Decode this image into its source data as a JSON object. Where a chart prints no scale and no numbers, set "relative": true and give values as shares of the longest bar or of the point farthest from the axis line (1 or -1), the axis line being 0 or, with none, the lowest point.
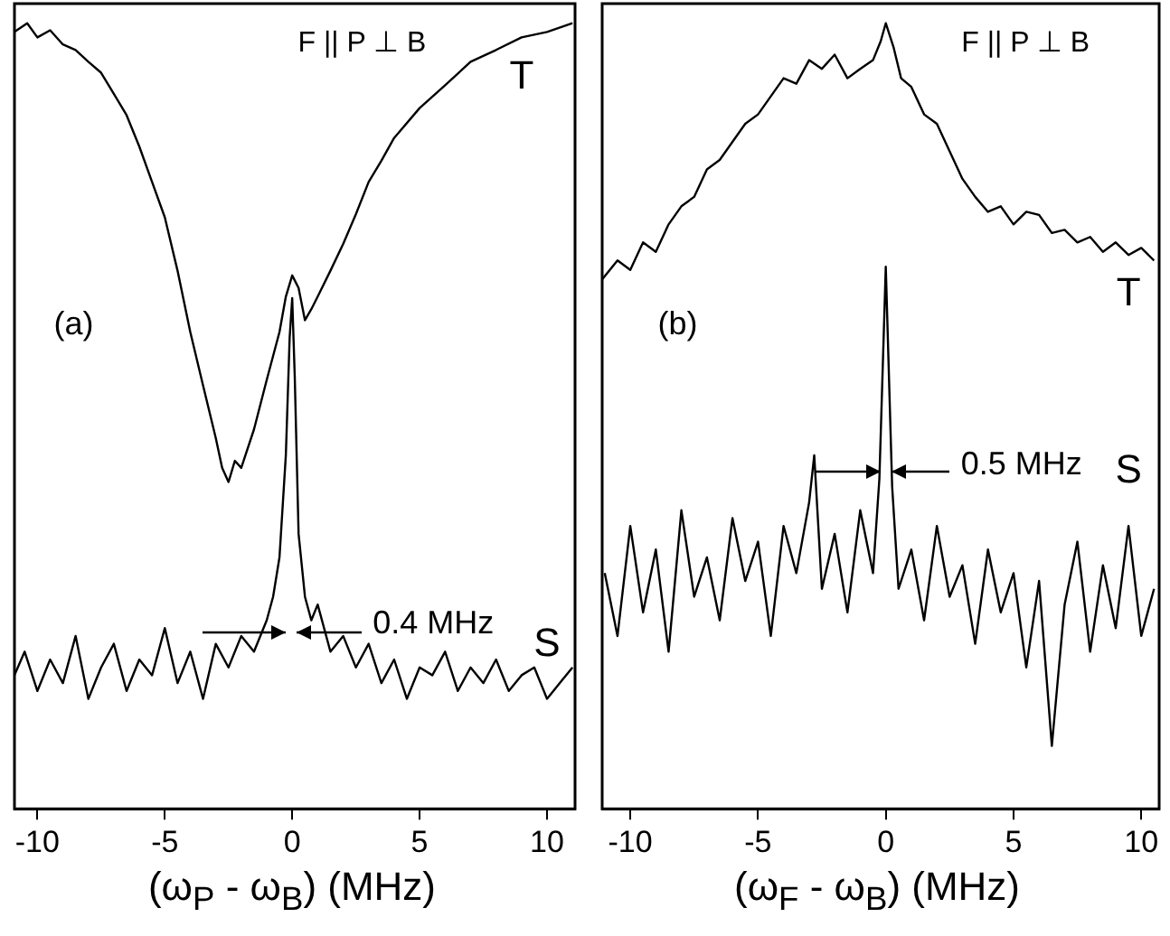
{
  "chart_data": [
    {
      "type": "line",
      "relative": true,
      "title": "F || P ⊥ B",
      "xlabel": "(ω$_{P}$ - ω$_{B}$) (MHz)",
      "xlim": [
        -10.9,
        11.1
      ],
      "xticks": [
        -10,
        -5,
        0,
        5,
        10
      ],
      "grid": false,
      "legend": false,
      "annotations": [
        "(a)",
        "0.4 MHz"
      ],
      "series": [
        {
          "name": "T",
          "color": "#000000",
          "x": [
            -10.9,
            -10.4,
            -10,
            -9.5,
            -9,
            -8.5,
            -8,
            -7.5,
            -7,
            -6.5,
            -6,
            -5.5,
            -5,
            -4.5,
            -4,
            -3.5,
            -3,
            -2.75,
            -2.5,
            -2.25,
            -2,
            -1.5,
            -1,
            -0.5,
            -0.25,
            0,
            0.25,
            0.5,
            0.75,
            1,
            1.5,
            2,
            2.5,
            3,
            3.5,
            4,
            5,
            6,
            7,
            8,
            9,
            10,
            11
          ],
          "values": [
            0.989,
            1.0,
            0.982,
            0.991,
            0.973,
            0.966,
            0.951,
            0.937,
            0.91,
            0.883,
            0.843,
            0.798,
            0.753,
            0.685,
            0.607,
            0.539,
            0.472,
            0.434,
            0.416,
            0.443,
            0.434,
            0.483,
            0.546,
            0.607,
            0.652,
            0.679,
            0.663,
            0.622,
            0.636,
            0.652,
            0.685,
            0.719,
            0.757,
            0.798,
            0.825,
            0.854,
            0.892,
            0.921,
            0.951,
            0.966,
            0.982,
            0.989,
            1.0
          ]
        },
        {
          "name": "S",
          "color": "#000000",
          "x": [
            -10.9,
            -10.5,
            -10,
            -9.5,
            -9,
            -8.5,
            -8,
            -7.5,
            -7,
            -6.5,
            -6,
            -5.5,
            -5,
            -4.5,
            -4,
            -3.5,
            -3,
            -2.5,
            -2,
            -1.5,
            -1,
            -0.75,
            -0.5,
            -0.25,
            -0.1,
            0,
            0.1,
            0.25,
            0.5,
            0.75,
            1,
            1.5,
            2,
            2.5,
            3,
            3.5,
            4,
            4.5,
            5,
            5.5,
            6,
            6.5,
            7,
            7.5,
            8,
            8.5,
            9,
            9.5,
            10,
            10.5,
            11
          ],
          "values": [
            0.17,
            0.2,
            0.15,
            0.19,
            0.16,
            0.22,
            0.14,
            0.18,
            0.21,
            0.15,
            0.19,
            0.17,
            0.23,
            0.16,
            0.2,
            0.14,
            0.21,
            0.18,
            0.22,
            0.2,
            0.24,
            0.27,
            0.32,
            0.45,
            0.6,
            0.65,
            0.55,
            0.35,
            0.27,
            0.24,
            0.26,
            0.2,
            0.22,
            0.18,
            0.21,
            0.16,
            0.19,
            0.14,
            0.18,
            0.17,
            0.2,
            0.15,
            0.18,
            0.16,
            0.19,
            0.15,
            0.17,
            0.18,
            0.14,
            0.16,
            0.18
          ]
        }
      ]
    },
    {
      "type": "line",
      "relative": true,
      "title": "F || P ⊥ B",
      "xlabel": "(ω$_{F}$ - ω$_{B}$) (MHz)",
      "xlim": [
        -11.1,
        10.7
      ],
      "xticks": [
        -10,
        -5,
        0,
        5,
        10
      ],
      "grid": false,
      "legend": false,
      "annotations": [
        "(b)",
        "0.5 MHz"
      ],
      "series": [
        {
          "name": "T",
          "color": "#000000",
          "x": [
            -11.1,
            -10.5,
            -10,
            -9.5,
            -9,
            -8.5,
            -8,
            -7.5,
            -7,
            -6.5,
            -6,
            -5.5,
            -5,
            -4.5,
            -4,
            -3.5,
            -3,
            -2.5,
            -2,
            -1.5,
            -1,
            -0.5,
            -0.2,
            0,
            0.3,
            0.6,
            1,
            1.5,
            2,
            2.5,
            3,
            3.5,
            4,
            4.5,
            5,
            5.5,
            6,
            6.5,
            7,
            7.5,
            8,
            8.5,
            9,
            9.5,
            10,
            10.5
          ],
          "values": [
            0.674,
            0.698,
            0.686,
            0.721,
            0.709,
            0.744,
            0.767,
            0.779,
            0.814,
            0.826,
            0.849,
            0.872,
            0.884,
            0.907,
            0.93,
            0.923,
            0.953,
            0.942,
            0.96,
            0.93,
            0.942,
            0.953,
            0.977,
            1.0,
            0.97,
            0.93,
            0.919,
            0.884,
            0.872,
            0.837,
            0.802,
            0.779,
            0.76,
            0.767,
            0.744,
            0.76,
            0.756,
            0.733,
            0.737,
            0.721,
            0.728,
            0.709,
            0.721,
            0.705,
            0.714,
            0.698
          ]
        },
        {
          "name": "S",
          "color": "#000000",
          "x": [
            -11,
            -10.5,
            -10,
            -9.5,
            -9,
            -8.5,
            -8,
            -7.5,
            -7,
            -6.5,
            -6,
            -5.5,
            -5,
            -4.5,
            -4,
            -3.5,
            -3,
            -2.8,
            -2.5,
            -2,
            -1.5,
            -1,
            -0.5,
            -0.25,
            0,
            0.25,
            0.5,
            1,
            1.5,
            2,
            2.5,
            3,
            3.5,
            4,
            4.5,
            5,
            5.5,
            6,
            6.5,
            7,
            7.5,
            8,
            8.5,
            9,
            9.5,
            10,
            10.5
          ],
          "values": [
            0.3,
            0.22,
            0.36,
            0.25,
            0.33,
            0.2,
            0.38,
            0.27,
            0.32,
            0.24,
            0.37,
            0.29,
            0.34,
            0.22,
            0.36,
            0.3,
            0.39,
            0.45,
            0.28,
            0.35,
            0.25,
            0.38,
            0.3,
            0.42,
            0.69,
            0.41,
            0.28,
            0.33,
            0.24,
            0.36,
            0.27,
            0.31,
            0.21,
            0.33,
            0.25,
            0.3,
            0.18,
            0.29,
            0.08,
            0.26,
            0.34,
            0.2,
            0.31,
            0.23,
            0.36,
            0.22,
            0.28
          ]
        }
      ]
    }
  ]
}
